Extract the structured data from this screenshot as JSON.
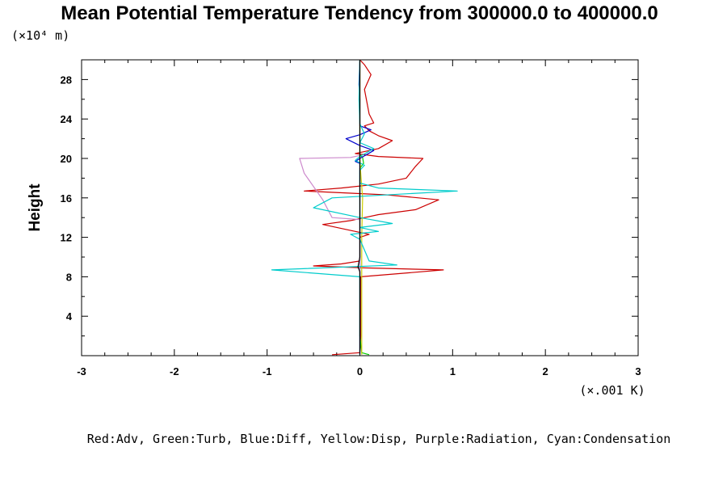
{
  "chart_data": {
    "type": "line",
    "title": "Mean Potential Temperature Tendency from 300000.0 to 400000.0",
    "y_unit_label": "(×10⁴ m)",
    "x_unit_label": "(×.001 K)",
    "ylabel": "Height",
    "xlabel": "",
    "xlim": [
      -3,
      3
    ],
    "ylim": [
      0,
      30
    ],
    "x_ticks": [
      "-3",
      "-2",
      "-1",
      "0",
      "1",
      "2",
      "3"
    ],
    "y_ticks": [
      "4",
      "8",
      "12",
      "16",
      "20",
      "24",
      "28"
    ],
    "legend_caption": "Red:Adv, Green:Turb, Blue:Diff, Yellow:Disp, Purple:Radiation, Cyan:Condensation",
    "series": [
      {
        "key": "adv",
        "color": "#cc0000",
        "points": [
          [
            -0.3,
            0.1
          ],
          [
            0.0,
            0.3
          ],
          [
            0.01,
            2
          ],
          [
            0.01,
            6
          ],
          [
            0.01,
            8.0
          ],
          [
            0.9,
            8.7
          ],
          [
            0.05,
            8.9
          ],
          [
            -0.5,
            9.1
          ],
          [
            -0.2,
            9.3
          ],
          [
            0.0,
            9.6
          ],
          [
            0.0,
            12.0
          ],
          [
            0.1,
            12.3
          ],
          [
            -0.1,
            12.7
          ],
          [
            -0.4,
            13.3
          ],
          [
            -0.1,
            13.7
          ],
          [
            0.05,
            14.0
          ],
          [
            0.2,
            14.3
          ],
          [
            0.6,
            14.8
          ],
          [
            0.85,
            15.8
          ],
          [
            0.3,
            16.3
          ],
          [
            -0.6,
            16.7
          ],
          [
            -0.2,
            17.0
          ],
          [
            0.2,
            17.4
          ],
          [
            0.5,
            18.0
          ],
          [
            0.6,
            19.2
          ],
          [
            0.68,
            20.0
          ],
          [
            0.2,
            20.2
          ],
          [
            -0.05,
            20.5
          ],
          [
            0.2,
            21.0
          ],
          [
            0.35,
            21.8
          ],
          [
            0.2,
            22.3
          ],
          [
            0.1,
            22.8
          ],
          [
            0.05,
            23.3
          ],
          [
            0.15,
            23.6
          ],
          [
            0.1,
            24.5
          ],
          [
            0.05,
            27.0
          ],
          [
            0.12,
            28.5
          ],
          [
            0.05,
            29.5
          ],
          [
            0.0,
            30.0
          ]
        ]
      },
      {
        "key": "turb",
        "color": "#00cc00",
        "points": [
          [
            0.1,
            0.1
          ],
          [
            0.02,
            0.3
          ],
          [
            0.0,
            2
          ],
          [
            0.0,
            19.0
          ],
          [
            0.04,
            19.5
          ],
          [
            0.03,
            20.1
          ],
          [
            0.0,
            20.4
          ],
          [
            0.0,
            30.0
          ]
        ]
      },
      {
        "key": "diff",
        "color": "#0000cc",
        "points": [
          [
            0.0,
            0.1
          ],
          [
            0.0,
            19.5
          ],
          [
            -0.05,
            19.7
          ],
          [
            0.0,
            20.0
          ],
          [
            0.15,
            20.8
          ],
          [
            0.0,
            21.3
          ],
          [
            -0.15,
            22.0
          ],
          [
            0.0,
            22.4
          ],
          [
            0.12,
            22.9
          ],
          [
            0.0,
            23.3
          ],
          [
            0.0,
            26.0
          ],
          [
            -0.01,
            27.5
          ],
          [
            0.0,
            30.0
          ]
        ]
      },
      {
        "key": "disp",
        "color": "#cccc00",
        "points": [
          [
            0.02,
            0.1
          ],
          [
            0.02,
            12.0
          ],
          [
            0.03,
            16.0
          ],
          [
            0.01,
            18.5
          ],
          [
            0.0,
            20.0
          ],
          [
            0.0,
            30.0
          ]
        ]
      },
      {
        "key": "radiation",
        "color": "#cc88cc",
        "points": [
          [
            0.0,
            0.1
          ],
          [
            0.0,
            13.8
          ],
          [
            -0.3,
            14.0
          ],
          [
            -0.4,
            15.8
          ],
          [
            -0.6,
            18.5
          ],
          [
            -0.65,
            20.0
          ],
          [
            -0.1,
            20.1
          ],
          [
            0.0,
            20.3
          ],
          [
            0.0,
            30.0
          ]
        ]
      },
      {
        "key": "condensation",
        "color": "#00cccc",
        "points": [
          [
            0.0,
            0.1
          ],
          [
            0.0,
            8.0
          ],
          [
            -0.95,
            8.7
          ],
          [
            0.4,
            9.2
          ],
          [
            0.1,
            9.6
          ],
          [
            0.0,
            11.8
          ],
          [
            -0.1,
            12.3
          ],
          [
            0.2,
            12.6
          ],
          [
            0.0,
            13.0
          ],
          [
            0.35,
            13.4
          ],
          [
            0.0,
            14.0
          ],
          [
            -0.5,
            15.0
          ],
          [
            -0.3,
            16.0
          ],
          [
            1.05,
            16.7
          ],
          [
            0.2,
            17.0
          ],
          [
            0.0,
            17.5
          ],
          [
            0.0,
            18.8
          ],
          [
            0.05,
            19.3
          ],
          [
            -0.05,
            19.8
          ],
          [
            0.0,
            20.2
          ],
          [
            0.15,
            21.0
          ],
          [
            0.0,
            21.6
          ],
          [
            0.05,
            22.5
          ],
          [
            0.0,
            23.5
          ],
          [
            -0.01,
            26.0
          ],
          [
            0.0,
            30.0
          ]
        ]
      },
      {
        "key": "total",
        "color": "#000000",
        "points": [
          [
            0.0,
            0.1
          ],
          [
            0.0,
            8.5
          ],
          [
            -0.02,
            9.0
          ],
          [
            0.0,
            10.0
          ],
          [
            0.0,
            12.0
          ],
          [
            0.0,
            30.0
          ]
        ]
      }
    ]
  }
}
